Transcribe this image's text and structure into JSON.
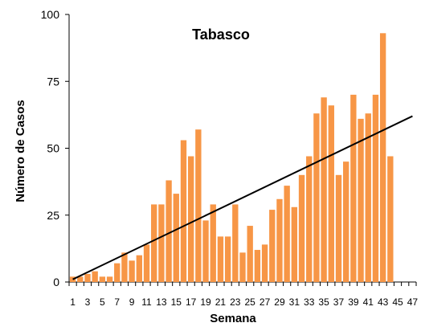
{
  "chart_data": {
    "type": "bar",
    "title": "Tabasco",
    "xlabel": "Semana",
    "ylabel": "Número de Casos",
    "ylim": [
      0,
      100
    ],
    "y_ticks": [
      0,
      25,
      50,
      75,
      100
    ],
    "x_tick_labels": [
      "1",
      "3",
      "5",
      "7",
      "9",
      "11",
      "13",
      "15",
      "17",
      "19",
      "21",
      "23",
      "25",
      "27",
      "29",
      "31",
      "33",
      "35",
      "37",
      "39",
      "41",
      "43",
      "45",
      "47"
    ],
    "categories": [
      1,
      2,
      3,
      4,
      5,
      6,
      7,
      8,
      9,
      10,
      11,
      12,
      13,
      14,
      15,
      16,
      17,
      18,
      19,
      20,
      21,
      22,
      23,
      24,
      25,
      26,
      27,
      28,
      29,
      30,
      31,
      32,
      33,
      34,
      35,
      36,
      37,
      38,
      39,
      40,
      41,
      42,
      43,
      44,
      45,
      46,
      47
    ],
    "values": [
      2,
      2,
      3,
      4,
      2,
      2,
      7,
      11,
      8,
      10,
      14,
      29,
      29,
      38,
      33,
      53,
      47,
      57,
      23,
      29,
      17,
      17,
      29,
      11,
      21,
      12,
      14,
      27,
      31,
      36,
      28,
      40,
      47,
      63,
      69,
      66,
      40,
      45,
      70,
      61,
      63,
      70,
      93,
      47,
      null,
      null,
      null
    ],
    "trendline": {
      "type": "linear",
      "x": [
        1,
        47
      ],
      "y": [
        1,
        62
      ]
    },
    "bar_color": "#F79646",
    "trend_color": "#000000",
    "grid": false
  }
}
